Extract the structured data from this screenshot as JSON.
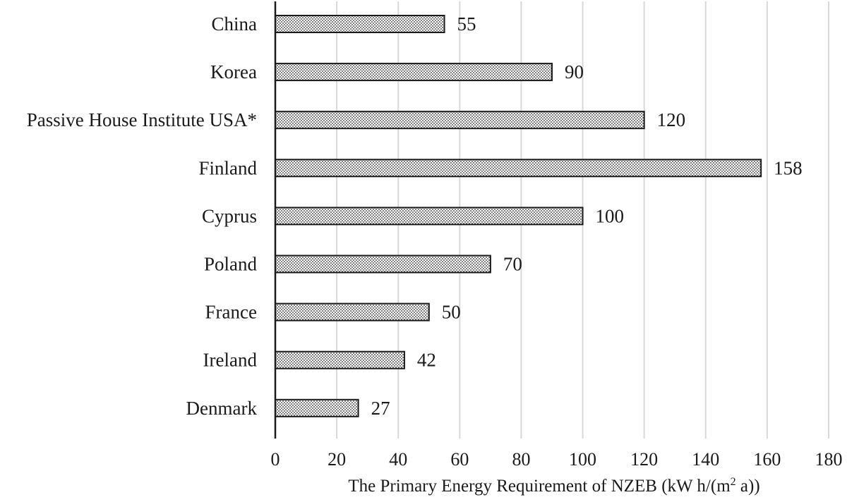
{
  "chart_data": {
    "type": "bar",
    "orientation": "horizontal",
    "categories": [
      "China",
      "Korea",
      "Passive House Institute USA*",
      "Finland",
      "Cyprus",
      "Poland",
      "France",
      "Ireland",
      "Denmark"
    ],
    "values": [
      55,
      90,
      120,
      158,
      100,
      70,
      50,
      42,
      27
    ],
    "data_labels": [
      "55",
      "90",
      "120",
      "158",
      "100",
      "70",
      "50",
      "42",
      "27"
    ],
    "xlim": [
      0,
      180
    ],
    "x_ticks": [
      "0",
      "20",
      "40",
      "60",
      "80",
      "100",
      "120",
      "140",
      "160",
      "180"
    ],
    "xlabel_main": "The Primary Energy Requirement of NZEB (kW h/(m",
    "xlabel_sup": "2",
    "xlabel_tail": " a))",
    "title": "",
    "ylabel": "",
    "grid": "vertical",
    "legend": "none",
    "colors": {
      "bar_fill_background": "#ffffff",
      "bar_dot": "#1a1a1a",
      "bar_stroke": "#1a1a1a",
      "grid": "#d9d9d9",
      "axis": "#1a1a1a",
      "text": "#1a1a1a"
    }
  }
}
